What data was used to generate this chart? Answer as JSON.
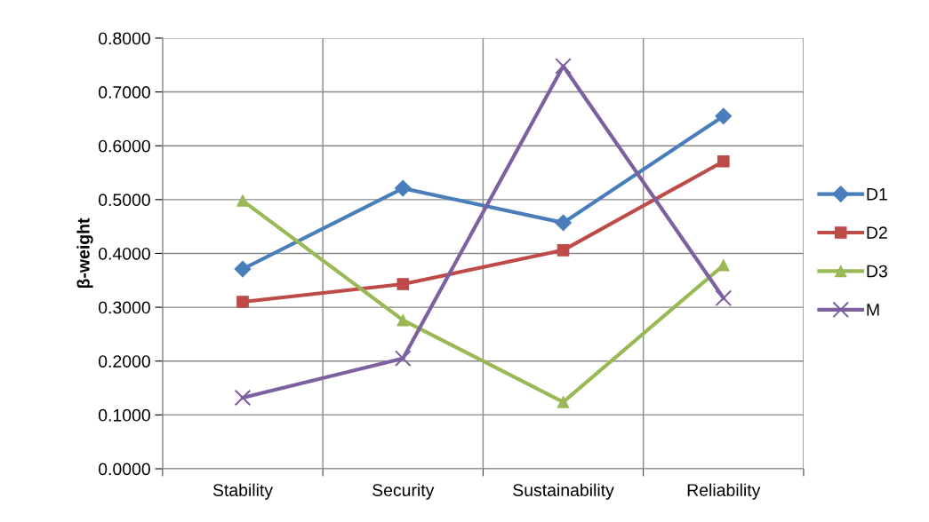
{
  "chart_data": {
    "type": "line",
    "ylabel": "β-weight",
    "categories": [
      "Stability",
      "Security",
      "Sustainability",
      "Reliability"
    ],
    "series": [
      {
        "name": "D1",
        "color": "#4a7ebb",
        "marker": "diamond",
        "values": [
          0.371,
          0.521,
          0.457,
          0.655
        ]
      },
      {
        "name": "D2",
        "color": "#be4b48",
        "marker": "square",
        "values": [
          0.31,
          0.343,
          0.406,
          0.571
        ]
      },
      {
        "name": "D3",
        "color": "#98b954",
        "marker": "triangle",
        "values": [
          0.498,
          0.276,
          0.124,
          0.378
        ]
      },
      {
        "name": "M",
        "color": "#7d60a0",
        "marker": "cross",
        "values": [
          0.132,
          0.205,
          0.748,
          0.317
        ]
      }
    ],
    "ylim": [
      0,
      0.8
    ],
    "yticks": [
      {
        "value": 0,
        "label": "0.0000"
      },
      {
        "value": 0.1,
        "label": "0.1000"
      },
      {
        "value": 0.2,
        "label": "0.2000"
      },
      {
        "value": 0.3,
        "label": "0.3000"
      },
      {
        "value": 0.4,
        "label": "0.4000"
      },
      {
        "value": 0.5,
        "label": "0.5000"
      },
      {
        "value": 0.6,
        "label": "0.6000"
      },
      {
        "value": 0.7,
        "label": "0.7000"
      },
      {
        "value": 0.8,
        "label": "0.8000"
      }
    ],
    "grid": true,
    "legend": "right"
  }
}
